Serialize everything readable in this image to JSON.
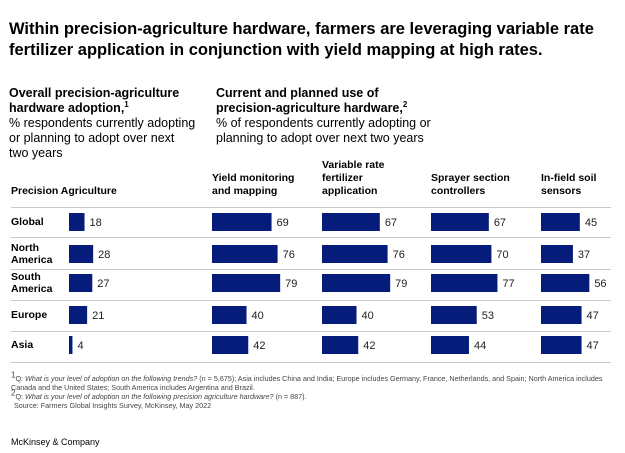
{
  "title": "Within precision-agriculture hardware, farmers are leveraging variable rate fertilizer application in conjunction with yield mapping at high rates.",
  "left_section": {
    "title": "Overall precision-agriculture hardware adoption,",
    "footnote_ref": "1",
    "subtitle": "% respondents currently adopting or planning to adopt over next two years"
  },
  "right_section": {
    "title": "Current and planned use of precision-agriculture hardware,",
    "footnote_ref": "2",
    "subtitle": "% of respondents currently adopting or planning to adopt over next two years"
  },
  "chart_data": {
    "type": "bar",
    "orientation": "horizontal",
    "categories": [
      "Global",
      "North America",
      "South America",
      "Europe",
      "Asia"
    ],
    "row_labels": [
      [
        "Global"
      ],
      [
        "North",
        "America"
      ],
      [
        "South",
        "America"
      ],
      [
        "Europe"
      ],
      [
        "Asia"
      ]
    ],
    "series": [
      {
        "name": "Precision Agriculture",
        "header_lines": [
          "Precision Agriculture"
        ],
        "values": [
          18,
          28,
          27,
          21,
          4
        ]
      },
      {
        "name": "Yield monitoring and mapping",
        "header_lines": [
          "Yield monitoring",
          "and mapping"
        ],
        "values": [
          69,
          76,
          79,
          40,
          42
        ]
      },
      {
        "name": "Variable rate fertilizer application",
        "header_lines": [
          "Variable rate",
          "fertilizer",
          "application"
        ],
        "values": [
          67,
          76,
          79,
          40,
          42
        ]
      },
      {
        "name": "Sprayer section controllers",
        "header_lines": [
          "Sprayer section",
          "controllers"
        ],
        "values": [
          67,
          70,
          77,
          53,
          44
        ]
      },
      {
        "name": "In-field soil sensors",
        "header_lines": [
          "In-field soil",
          "sensors"
        ],
        "values": [
          45,
          37,
          56,
          47,
          47
        ]
      }
    ],
    "xlim": [
      0,
      100
    ],
    "bar_color": "#051c7a"
  },
  "footnotes": {
    "f1_ref": "1",
    "f1_label": "Q:",
    "f1_question": "What is your level of adoption on the following trends?",
    "f1_rest": "(n = 5,675); Asia includes China and India; Europe includes Germany, France, Netherlands, and Spain; North America includes Canada and the United States; South America includes Argentina and Brazil.",
    "f2_ref": "2",
    "f2_label": "Q:",
    "f2_question": "What is your level of adoption on the following precision agriculture hardware?",
    "f2_rest": "(n = 887).",
    "source": "Source: Farmers Global Insights Survey, McKinsey, May 2022"
  },
  "brand": "McKinsey & Company"
}
